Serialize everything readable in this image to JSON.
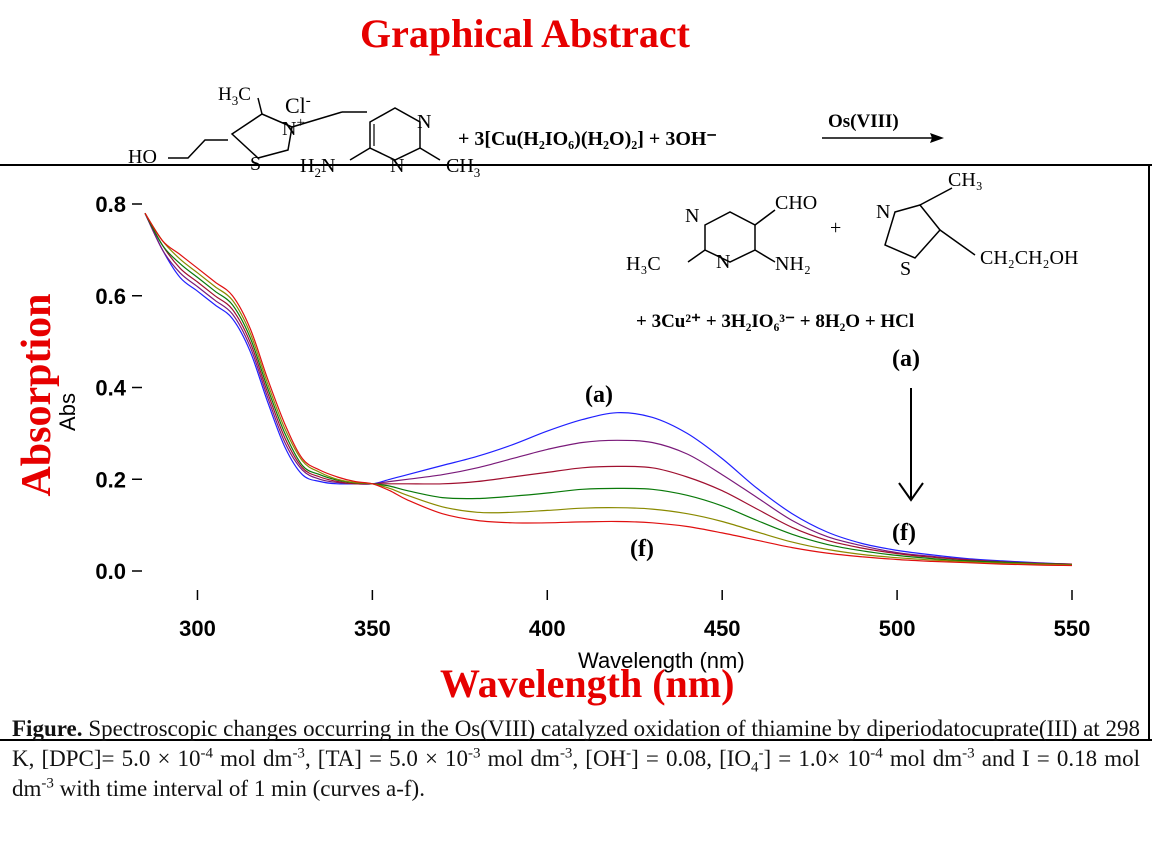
{
  "header": {
    "title": "Graphical Abstract"
  },
  "reaction": {
    "thiamine": {
      "h3c": "H",
      "h3c_sub": "3",
      "h3c_c": "C",
      "cl": "Cl",
      "cl_sup": "-",
      "n_plus": "N",
      "n_plus_sup": "+",
      "ho": "HO",
      "s": "S",
      "h2n": "H",
      "h2n_sub": "2",
      "h2n_n": "N",
      "n_ring1": "N",
      "n_ring2": "N",
      "ch3": "CH",
      "ch3_sub": "3"
    },
    "reagents": "+  3[Cu(H₂IO₆)(H₂O)₂] + 3OH⁻",
    "catalyst": "Os(VIII)",
    "product1": {
      "cho": "CHO",
      "n1": "N",
      "n2": "N",
      "h3c": "H₃C",
      "nh2": "NH₂"
    },
    "plus": "+",
    "product2": {
      "ch3": "CH₃",
      "n": "N",
      "s": "S",
      "ch2ch2oh": "CH₂CH₂OH"
    },
    "byproducts": "+ 3Cu²⁺  +  3H₂IO₆³⁻  + 8H₂O + HCl"
  },
  "chart_data": {
    "type": "line",
    "title": "",
    "xlabel": "Wavelength (nm)",
    "xlabel_overlay": "Wavelength (nm)",
    "ylabel": "Abs",
    "ylabel_overlay": "Absorption",
    "xlim": [
      285,
      550
    ],
    "ylim": [
      0.0,
      0.8
    ],
    "xticks": [
      "300",
      "350",
      "400",
      "450",
      "500",
      "550"
    ],
    "yticks": [
      "0.0",
      "0.2",
      "0.4",
      "0.6",
      "0.8"
    ],
    "x": [
      285,
      290,
      295,
      300,
      305,
      310,
      315,
      320,
      325,
      330,
      335,
      340,
      345,
      350,
      355,
      360,
      370,
      380,
      390,
      400,
      410,
      420,
      430,
      440,
      450,
      460,
      470,
      480,
      490,
      500,
      510,
      520,
      530,
      540,
      550
    ],
    "series": [
      {
        "color": "#2020ff",
        "values": [
          0.78,
          0.7,
          0.64,
          0.61,
          0.58,
          0.55,
          0.48,
          0.37,
          0.27,
          0.21,
          0.195,
          0.19,
          0.19,
          0.19,
          0.2,
          0.21,
          0.23,
          0.25,
          0.275,
          0.305,
          0.33,
          0.345,
          0.335,
          0.3,
          0.245,
          0.18,
          0.125,
          0.085,
          0.06,
          0.045,
          0.035,
          0.027,
          0.022,
          0.018,
          0.015
        ]
      },
      {
        "color": "#7a1a7a",
        "values": [
          0.78,
          0.7,
          0.65,
          0.62,
          0.59,
          0.56,
          0.49,
          0.38,
          0.28,
          0.22,
          0.2,
          0.193,
          0.19,
          0.19,
          0.195,
          0.2,
          0.21,
          0.225,
          0.245,
          0.265,
          0.28,
          0.285,
          0.28,
          0.255,
          0.21,
          0.16,
          0.11,
          0.075,
          0.055,
          0.04,
          0.032,
          0.025,
          0.02,
          0.017,
          0.015
        ]
      },
      {
        "color": "#a01030",
        "values": [
          0.78,
          0.71,
          0.66,
          0.63,
          0.6,
          0.57,
          0.5,
          0.39,
          0.29,
          0.225,
          0.205,
          0.195,
          0.19,
          0.19,
          0.19,
          0.19,
          0.19,
          0.195,
          0.205,
          0.215,
          0.225,
          0.228,
          0.225,
          0.205,
          0.175,
          0.135,
          0.095,
          0.067,
          0.05,
          0.038,
          0.03,
          0.024,
          0.02,
          0.017,
          0.015
        ]
      },
      {
        "color": "#0a7a0a",
        "values": [
          0.78,
          0.71,
          0.67,
          0.64,
          0.61,
          0.58,
          0.51,
          0.4,
          0.3,
          0.23,
          0.21,
          0.198,
          0.192,
          0.19,
          0.185,
          0.175,
          0.16,
          0.158,
          0.163,
          0.17,
          0.178,
          0.18,
          0.178,
          0.165,
          0.142,
          0.11,
          0.08,
          0.058,
          0.044,
          0.034,
          0.027,
          0.022,
          0.019,
          0.016,
          0.014
        ]
      },
      {
        "color": "#8a8a00",
        "values": [
          0.78,
          0.72,
          0.68,
          0.65,
          0.62,
          0.59,
          0.52,
          0.41,
          0.31,
          0.24,
          0.215,
          0.2,
          0.193,
          0.19,
          0.18,
          0.165,
          0.14,
          0.128,
          0.128,
          0.132,
          0.137,
          0.138,
          0.135,
          0.125,
          0.108,
          0.085,
          0.063,
          0.047,
          0.036,
          0.029,
          0.024,
          0.02,
          0.017,
          0.015,
          0.013
        ]
      },
      {
        "color": "#e01010",
        "values": [
          0.78,
          0.72,
          0.69,
          0.66,
          0.63,
          0.6,
          0.53,
          0.42,
          0.32,
          0.245,
          0.22,
          0.205,
          0.195,
          0.19,
          0.175,
          0.155,
          0.125,
          0.11,
          0.105,
          0.105,
          0.107,
          0.108,
          0.105,
          0.097,
          0.083,
          0.067,
          0.051,
          0.039,
          0.031,
          0.025,
          0.021,
          0.018,
          0.015,
          0.013,
          0.012
        ]
      }
    ],
    "annotations": {
      "curve_top": "(a)",
      "curve_bottom": "(f)",
      "arrow_top": "(a)",
      "arrow_bottom": "(f)"
    }
  },
  "caption": {
    "label": "Figure.",
    "t1": " Spectroscopic changes occurring in the Os(VIII) catalyzed oxidation of thiamine by diperiodatocuprate(III) at 298 K, [DPC]= 5.0 × 10",
    "s1": "-4",
    "t2": " mol dm",
    "s2": "-3",
    "t3": ", [TA] = 5.0 × 10",
    "s3": "-3",
    "t4": " mol dm",
    "s4": "-3",
    "t5": ", [OH",
    "s5": "-",
    "t6": "] = 0.08, [IO",
    "sub6": "4",
    "s6": "-",
    "t7": "] = 1.0× 10",
    "s7": "-4",
    "t8": " mol dm",
    "s8": "-3",
    "t9": "  and I = 0.18 mol dm",
    "s9": "-3",
    "t10": " with time interval of 1 min (curves a-f)."
  }
}
